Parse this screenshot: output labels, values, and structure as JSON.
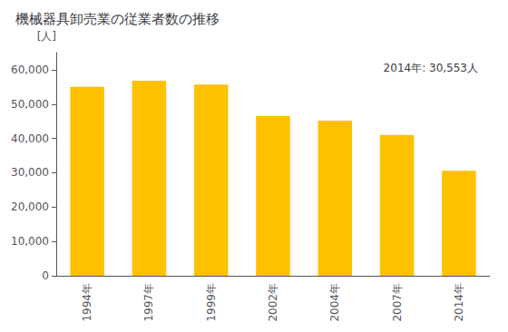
{
  "chart_data": {
    "type": "bar",
    "title": "機械器具卸売業の従業者数の推移",
    "ylabel": "[人]",
    "annotation": "2014年: 30,553人",
    "categories": [
      "1994年",
      "1997年",
      "1999年",
      "2002年",
      "2004年",
      "2007年",
      "2014年"
    ],
    "values": [
      55000,
      56800,
      55700,
      46500,
      45200,
      41000,
      30553
    ],
    "color": "#FFC000",
    "ylim": [
      0,
      65000
    ],
    "yticks": [
      0,
      {
        "value": 10000,
        "label": "10,000"
      },
      {
        "value": 20000,
        "label": "20,000"
      },
      {
        "value": 30000,
        "label": "30,000"
      },
      {
        "value": 40000,
        "label": "40,000"
      },
      {
        "value": 50000,
        "label": "50,000"
      },
      {
        "value": 60000,
        "label": "60,000"
      }
    ],
    "grid": false
  }
}
